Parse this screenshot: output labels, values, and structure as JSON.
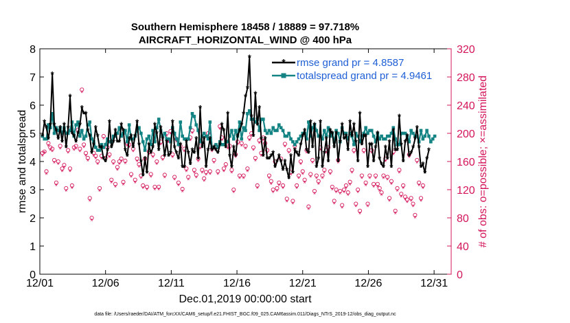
{
  "chart_data": {
    "type": "line",
    "title_line1": "Southern Hemisphere 18458 / 18889 = 97.718%",
    "title_line2": "AIRCRAFT_HORIZONTAL_WIND @ 400 hPa",
    "xlabel": "Dec.01,2019 00:00:00 start",
    "ylabel_left": "rmse and totalspread",
    "ylabel_right": "# of obs: o=possible; ×=assimilated",
    "footnote": "data file: /Users/raeder/DAI/ATM_forcXX/CAM6_setup/f.e21.FHIST_BGC.f09_025.CAM6assim.011/Diags_NTrS_2019-12/obs_diag_output.nc",
    "xlim": [
      0,
      31.3
    ],
    "ylim_left": [
      0,
      8
    ],
    "ylim_right": [
      0,
      320
    ],
    "x_tick_values": [
      0,
      5,
      10,
      15,
      20,
      25,
      30
    ],
    "x_tick_labels": [
      "12/01",
      "12/06",
      "12/11",
      "12/16",
      "12/21",
      "12/26",
      "12/31"
    ],
    "y_left_ticks": [
      0,
      1,
      2,
      3,
      4,
      5,
      6,
      7,
      8
    ],
    "y_right_ticks": [
      0,
      40,
      80,
      120,
      160,
      200,
      240,
      280,
      320
    ],
    "colors": {
      "rmse": "#000000",
      "spread": "#138383",
      "counts": "#d4145a",
      "legend_text": "#1f5fd6",
      "right_axis": "#d4145a"
    },
    "series": [
      {
        "name": "rmse grand pr = 4.8587",
        "axis": "left",
        "marker": "asterisk",
        "values": [
          4.9,
          5.4,
          5.2,
          4.8,
          5.3,
          7.1,
          5.3,
          5.1,
          4.8,
          5.2,
          4.7,
          5.3,
          4.5,
          5.2,
          6.3,
          5.0,
          4.9,
          4.7,
          5.0,
          5.3,
          5.9,
          5.7,
          5.7,
          5.1,
          4.9,
          4.3,
          4.6,
          5.2,
          4.9,
          4.5,
          4.5,
          4.1,
          4.0,
          4.4,
          5.4,
          4.5,
          4.7,
          5.1,
          4.7,
          4.7,
          5.3,
          5.1,
          4.4,
          4.2,
          4.8,
          4.9,
          4.5,
          4.9,
          5.4,
          4.6,
          4.0,
          3.5,
          4.1,
          3.6,
          4.6,
          4.3,
          4.5,
          5.3,
          5.0,
          4.4,
          5.2,
          4.8,
          4.2,
          4.7,
          4.2,
          4.3,
          5.4,
          4.5,
          4.3,
          4.1,
          4.6,
          3.8,
          3.8,
          4.7,
          4.3,
          3.9,
          4.4,
          4.3,
          4.8,
          4.1,
          5.9,
          4.5,
          4.8,
          3.8,
          4.4,
          4.8,
          4.4,
          4.5,
          4.4,
          4.3,
          4.6,
          5.3,
          5.1,
          4.5,
          5.7,
          4.2,
          3.8,
          4.5,
          4.2,
          4.9,
          5.1,
          5.3,
          5.7,
          6.3,
          6.6,
          7.7,
          5.6,
          4.9,
          6.4,
          5.3,
          5.9,
          4.8,
          4.2,
          4.8,
          4.1,
          4.1,
          4.2,
          4.3,
          3.8,
          4.0,
          4.2,
          4.0,
          3.7,
          4.0,
          3.7,
          3.4,
          4.2,
          3.6,
          4.4,
          4.3,
          4.2,
          4.6,
          4.9,
          5.1,
          4.4,
          4.3,
          5.4,
          4.5,
          5.3,
          3.8,
          4.1,
          5.4,
          3.8,
          4.3,
          4.8,
          4.0,
          5.1,
          5.0,
          4.5,
          5.0,
          4.0,
          4.7,
          5.3,
          4.8,
          4.9,
          4.4,
          5.4,
          4.9,
          5.3,
          4.7,
          4.0,
          5.7,
          4.6,
          4.9,
          4.9,
          3.8,
          4.6,
          4.6,
          4.0,
          4.5,
          5.0,
          4.1,
          3.9,
          3.8,
          4.5,
          4.1,
          4.7,
          3.8,
          5.1,
          4.4,
          4.4,
          5.6,
          4.6,
          4.0,
          4.7,
          4.9,
          4.2,
          4.3,
          4.5,
          4.8,
          5.2,
          4.5,
          3.8,
          3.9,
          3.6,
          4.1,
          4.4
        ]
      },
      {
        "name": "totalspread grand pr = 4.9461",
        "axis": "left",
        "marker": "square",
        "values": [
          4.9,
          4.8,
          4.8,
          5.3,
          5.2,
          5.7,
          5.0,
          5.2,
          5.1,
          5.2,
          5.0,
          5.2,
          5.0,
          5.0,
          5.1,
          5.4,
          4.9,
          5.3,
          5.4,
          4.9,
          5.1,
          4.8,
          4.9,
          5.3,
          5.4,
          4.8,
          4.7,
          4.5,
          4.4,
          4.4,
          4.6,
          4.5,
          4.6,
          4.8,
          4.7,
          4.7,
          4.9,
          4.9,
          5.0,
          5.2,
          4.9,
          5.0,
          5.1,
          4.7,
          5.3,
          4.8,
          4.8,
          4.9,
          5.1,
          5.2,
          5.0,
          4.7,
          4.4,
          4.8,
          4.9,
          4.6,
          5.1,
          4.7,
          5.2,
          5.5,
          5.1,
          4.9,
          5.0,
          4.8,
          4.8,
          4.7,
          5.2,
          5.0,
          4.8,
          4.6,
          5.4,
          4.9,
          4.8,
          4.8,
          4.8,
          5.2,
          5.7,
          5.6,
          5.3,
          5.1,
          4.7,
          4.9,
          5.0,
          4.9,
          4.8,
          5.4,
          4.5,
          4.5,
          4.6,
          4.5,
          4.7,
          4.6,
          4.6,
          4.7,
          4.7,
          4.9,
          5.1,
          4.8,
          5.1,
          4.9,
          5.4,
          4.8,
          5.2,
          5.1,
          5.7,
          5.8,
          5.5,
          5.5,
          5.4,
          5.5,
          5.1,
          5.5,
          5.5,
          5.1,
          5.0,
          5.1,
          5.0,
          5.2,
          5.1,
          5.1,
          5.3,
          5.2,
          5.1,
          4.9,
          4.9,
          5.0,
          4.8,
          4.7,
          4.6,
          4.7,
          4.8,
          4.9,
          5.0,
          5.0,
          4.8,
          5.4,
          4.9,
          5.2,
          5.3,
          5.1,
          4.9,
          4.9,
          4.8,
          5.1,
          4.9,
          5.2,
          4.9,
          5.0,
          4.7,
          5.1,
          5.0,
          4.7,
          5.2,
          5.0,
          5.0,
          4.8,
          5.0,
          4.9,
          4.6,
          5.0,
          4.9,
          4.7,
          4.9,
          5.0,
          5.2,
          5.0,
          5.1,
          5.1,
          4.9,
          4.7,
          5.0,
          4.8,
          4.9,
          4.8,
          4.8,
          4.9,
          4.9,
          5.0,
          5.2,
          4.8,
          4.6,
          4.6,
          5.0,
          5.0,
          5.0,
          4.9,
          4.7,
          5.1,
          5.0,
          4.9,
          4.9,
          4.7,
          5.1,
          4.8,
          4.9,
          5.1,
          4.9,
          4.7,
          4.8,
          4.9
        ]
      },
      {
        "name": "obs possible",
        "axis": "right",
        "marker": "circle",
        "values": [
          172,
          174,
          146,
          186,
          180,
          178,
          162,
          130,
          160,
          182,
          150,
          155,
          122,
          176,
          150,
          126,
          180,
          182,
          205,
          178,
          262,
          184,
          172,
          165,
          108,
          80,
          172,
          168,
          160,
          122,
          168,
          196,
          165,
          180,
          170,
          134,
          160,
          128,
          152,
          160,
          164,
          131,
          161,
          186,
          184,
          142,
          178,
          134,
          164,
          156,
          140,
          126,
          164,
          124,
          174,
          142,
          170,
          124,
          160,
          124,
          188,
          166,
          141,
          200,
          191,
          203,
          170,
          138,
          192,
          130,
          182,
          121,
          178,
          150,
          138,
          194,
          204,
          148,
          141,
          164,
          182,
          148,
          136,
          145,
          200,
          146,
          178,
          162,
          182,
          146,
          210,
          194,
          150,
          156,
          182,
          182,
          148,
          120,
          170,
          188,
          140,
          186,
          140,
          182,
          150,
          194,
          200,
          180,
          165,
          126,
          190,
          172,
          194,
          186,
          176,
          140,
          132,
          120,
          160,
          122,
          130,
          164,
          126,
          185,
          107,
          176,
          145,
          104,
          182,
          126,
          140,
          160,
          146,
          134,
          176,
          96,
          142,
          162,
          118,
          140,
          132,
          180,
          140,
          148,
          176,
          180,
          146,
          124,
          104,
          120,
          162,
          118,
          98,
          120,
          126,
          116,
          131,
          148,
          176,
          100,
          120,
          90,
          140,
          176,
          130,
          100,
          140,
          176,
          128,
          140,
          128,
          122,
          116,
          140,
          164,
          138,
          108,
          132,
          174,
          90,
          122,
          148,
          114,
          126,
          110,
          106,
          170,
          108,
          100,
          84,
          162,
          130,
          108,
          126
        ]
      },
      {
        "name": "obs assimilated",
        "axis": "right",
        "marker": "x",
        "values": [
          168,
          172,
          142,
          182,
          176,
          174,
          158,
          126,
          156,
          178,
          146,
          151,
          118,
          172,
          146,
          122,
          176,
          178,
          201,
          174,
          258,
          180,
          168,
          161,
          104,
          76,
          168,
          164,
          156,
          118,
          164,
          192,
          161,
          176,
          166,
          130,
          156,
          124,
          148,
          156,
          160,
          127,
          157,
          182,
          180,
          138,
          174,
          130,
          160,
          152,
          136,
          122,
          160,
          120,
          170,
          138,
          166,
          120,
          156,
          120,
          184,
          162,
          137,
          196,
          187,
          199,
          166,
          134,
          188,
          126,
          178,
          117,
          174,
          146,
          134,
          190,
          200,
          144,
          137,
          160,
          178,
          144,
          132,
          141,
          196,
          142,
          174,
          158,
          178,
          142,
          206,
          190,
          146,
          152,
          178,
          178,
          144,
          116,
          166,
          184,
          136,
          182,
          136,
          178,
          146,
          190,
          196,
          176,
          161,
          122,
          186,
          168,
          190,
          182,
          172,
          136,
          128,
          116,
          156,
          118,
          126,
          160,
          122,
          181,
          103,
          172,
          141,
          100,
          178,
          122,
          136,
          156,
          142,
          130,
          172,
          92,
          138,
          158,
          114,
          136,
          128,
          176,
          136,
          144,
          172,
          176,
          142,
          120,
          100,
          116,
          158,
          114,
          94,
          116,
          122,
          112,
          127,
          144,
          172,
          96,
          116,
          86,
          136,
          172,
          126,
          96,
          136,
          172,
          124,
          136,
          124,
          118,
          112,
          136,
          160,
          134,
          104,
          128,
          170,
          86,
          118,
          144,
          110,
          122,
          106,
          102,
          166,
          104,
          96,
          80,
          158,
          126,
          104,
          122
        ]
      }
    ]
  }
}
